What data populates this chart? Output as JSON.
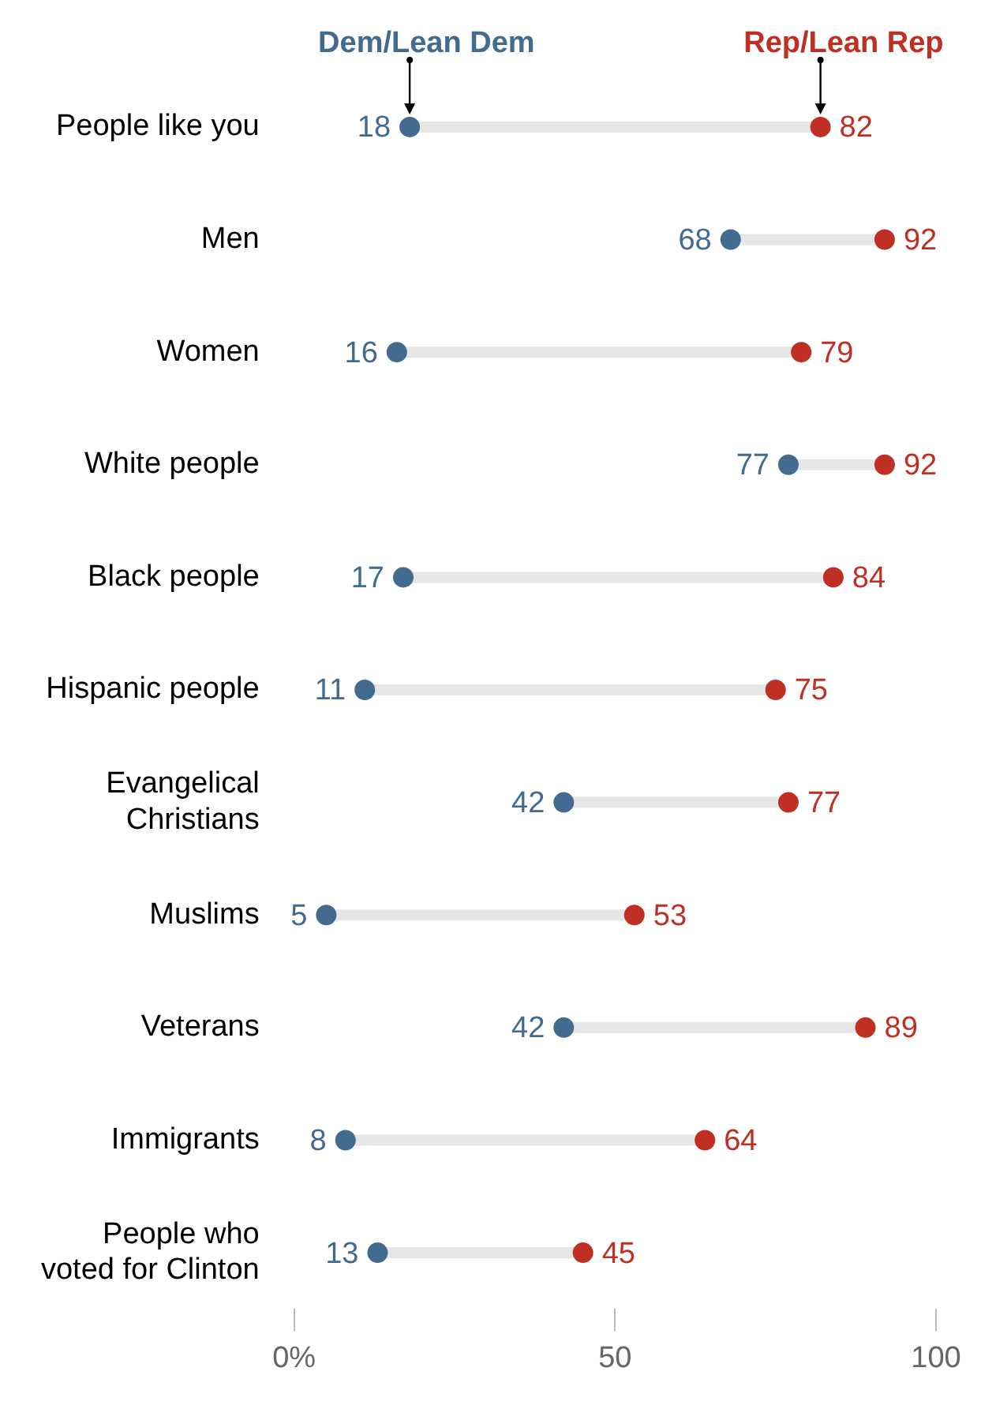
{
  "chart_data": {
    "type": "scatter",
    "orientation": "horizontal",
    "categories": [
      "People like you",
      "Men",
      "Women",
      "White people",
      "Black people",
      "Hispanic people",
      "Evangelical Christians",
      "Muslims",
      "Veterans",
      "Immigrants",
      "People who voted for Clinton"
    ],
    "series": [
      {
        "name": "Dem/Lean Dem",
        "color": "#436a8f",
        "values": [
          18,
          68,
          16,
          77,
          17,
          11,
          42,
          5,
          42,
          8,
          13
        ]
      },
      {
        "name": "Rep/Lean Rep",
        "color": "#bf2f24",
        "values": [
          82,
          92,
          79,
          92,
          84,
          75,
          77,
          53,
          89,
          64,
          45
        ]
      }
    ],
    "xlim": [
      0,
      100
    ],
    "xticks": [
      {
        "value": 0,
        "label": "0%"
      },
      50,
      100
    ],
    "marker": "circle",
    "data_labels": true,
    "legend": "top",
    "grid": false
  }
}
